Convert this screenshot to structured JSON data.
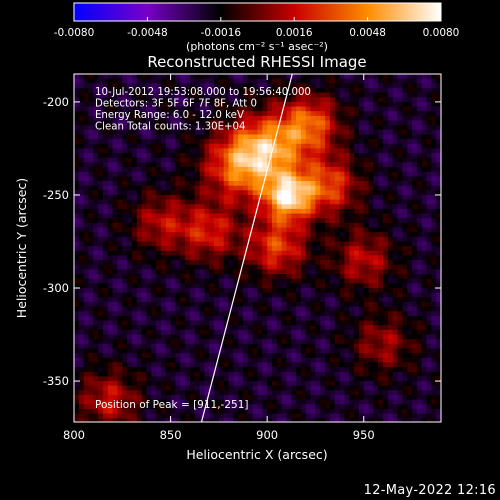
{
  "chart_data": {
    "type": "heatmap",
    "title": "Reconstructed RHESSI Image",
    "xlabel": "Heliocentric X (arcsec)",
    "ylabel": "Heliocentric Y (arcsec)",
    "xlim": [
      800,
      990
    ],
    "ylim": [
      -372,
      -185
    ],
    "xticks": [
      800,
      850,
      900,
      950
    ],
    "yticks": [
      -200,
      -250,
      -300,
      -350
    ],
    "colorbar": {
      "range": [
        -0.008,
        0.008
      ],
      "ticks": [
        "-0.0080",
        "-0.0048",
        "-0.0016",
        "0.0016",
        "0.0048",
        "0.0080"
      ],
      "unit_label": "(photons cm⁻² s⁻¹ asec⁻²)",
      "colors": [
        "#0000ff",
        "#7800c8",
        "#000000",
        "#c80000",
        "#ff8c00",
        "#ffffff"
      ]
    },
    "annotations": [
      "10-Jul-2012 19:53:08.000 to 19:56:40.000",
      "Detectors: 3F 5F 6F 7F 8F, Att 0",
      "Energy Range: 6.0 - 12.0 keV",
      "Clean     Total counts: 1.30E+04"
    ],
    "peak_label": "Position of Peak = [911,-251]",
    "peak": [
      911,
      -251
    ],
    "limb_line": [
      [
        913,
        -185
      ],
      [
        866,
        -372
      ]
    ],
    "sources": [
      {
        "x": 911,
        "y": -251,
        "value": 0.0078
      },
      {
        "x": 900,
        "y": -225,
        "value": 0.0058
      },
      {
        "x": 885,
        "y": -235,
        "value": 0.0048
      },
      {
        "x": 922,
        "y": -212,
        "value": 0.005
      },
      {
        "x": 932,
        "y": -245,
        "value": 0.0045
      },
      {
        "x": 905,
        "y": -278,
        "value": 0.0044
      },
      {
        "x": 870,
        "y": -270,
        "value": 0.0035
      },
      {
        "x": 950,
        "y": -285,
        "value": 0.003
      },
      {
        "x": 845,
        "y": -265,
        "value": 0.0028
      },
      {
        "x": 818,
        "y": -360,
        "value": 0.0032
      },
      {
        "x": 960,
        "y": -330,
        "value": 0.0024
      }
    ],
    "background_level": -0.0022
  },
  "footer_date": "12-May-2022 12:16"
}
